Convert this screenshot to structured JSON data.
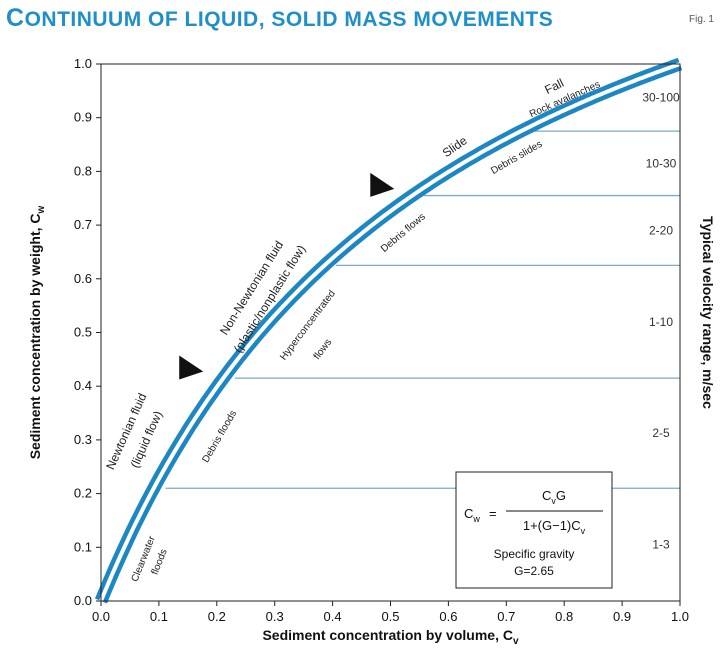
{
  "header": {
    "title_cap": "C",
    "title_rest": "ONTINUUM OF LIQUID, SOLID MASS MOVEMENTS",
    "fig_label": "Fig. 1"
  },
  "chart_data": {
    "type": "line",
    "title": "Continuum of liquid, solid mass movements",
    "xlabel": "Sediment concentration by volume, C",
    "xlabel_sub": "v",
    "ylabel": "Sediment concentration by weight, C",
    "ylabel_sub": "w",
    "y2label": "Typical velocity range, m/sec",
    "xlim": [
      0,
      1
    ],
    "ylim": [
      0,
      1
    ],
    "xticks": [
      "0.0",
      "0.1",
      "0.2",
      "0.3",
      "0.4",
      "0.5",
      "0.6",
      "0.7",
      "0.8",
      "0.9",
      "1.0"
    ],
    "yticks": [
      "0.0",
      "0.1",
      "0.2",
      "0.3",
      "0.4",
      "0.5",
      "0.6",
      "0.7",
      "0.8",
      "0.9",
      "1.0"
    ],
    "grid": false,
    "curve": {
      "specific_gravity": 2.65,
      "x": [
        0.0,
        0.05,
        0.1,
        0.15,
        0.2,
        0.25,
        0.3,
        0.35,
        0.4,
        0.45,
        0.5,
        0.55,
        0.6,
        0.65,
        0.7,
        0.75,
        0.8,
        0.85,
        0.9,
        0.95,
        1.0
      ],
      "y": [
        0.0,
        0.122,
        0.227,
        0.319,
        0.399,
        0.469,
        0.532,
        0.588,
        0.639,
        0.685,
        0.726,
        0.764,
        0.799,
        0.831,
        0.861,
        0.888,
        0.914,
        0.937,
        0.96,
        0.981,
        1.0
      ]
    },
    "velocity_bands": [
      {
        "label": "1-3",
        "y_from": 0.0,
        "y_to": 0.21
      },
      {
        "label": "2-5",
        "y_from": 0.21,
        "y_to": 0.415
      },
      {
        "label": "1-10",
        "y_from": 0.415,
        "y_to": 0.625
      },
      {
        "label": "2-20",
        "y_from": 0.625,
        "y_to": 0.755
      },
      {
        "label": "10-30",
        "y_from": 0.755,
        "y_to": 0.875
      },
      {
        "label": "30-100",
        "y_from": 0.875,
        "y_to": 1.0
      }
    ],
    "regime_labels": [
      "Newtonian fluid",
      "(liquid flow)",
      "Non-Newtonian fluid",
      "(plastic/nonplastic flow)",
      "Slide",
      "Fall"
    ],
    "flow_labels": [
      "Clearwater",
      "floods",
      "Debris floods",
      "Hyperconcentrated",
      "flows",
      "Debris flows",
      "Debris slides",
      "Rock avalanches"
    ],
    "transitions": [
      {
        "x": 0.18,
        "y": 0.42
      },
      {
        "x": 0.51,
        "y": 0.76
      }
    ],
    "formula": {
      "lhs": "C",
      "lhs_sub": "w",
      "eq": "=",
      "num": "C",
      "num_sub": "v",
      "num_tail": "G",
      "den": "1+(G−1)C",
      "den_sub": "v",
      "note1": "Specific gravity",
      "note2": "G=2.65"
    },
    "colors": {
      "curve": "#1d87c3",
      "curve_inner": "#ffffff",
      "band_line": "#7fa7c8",
      "title": "#1f8fc9",
      "axis": "#222222"
    }
  }
}
